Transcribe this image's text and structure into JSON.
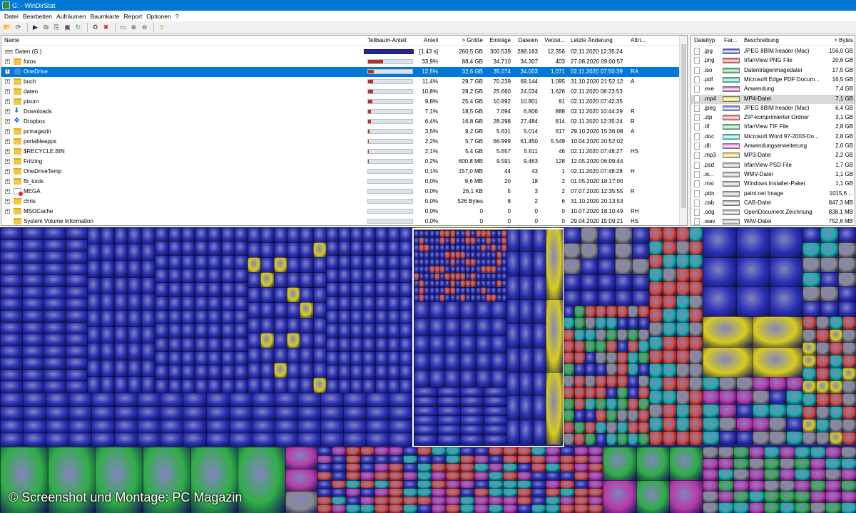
{
  "window": {
    "title": "G: - WinDirStat"
  },
  "menu": [
    "Datei",
    "Bearbeiten",
    "Aufräumen",
    "Baumkarte",
    "Report",
    "Optionen",
    "?"
  ],
  "toolbar": [
    "open-icon",
    "refresh-icon",
    "play-icon",
    "copy-icon",
    "copy-path-icon",
    "cmd-icon",
    "refresh-all-icon",
    "recycle-icon",
    "delete-icon",
    "folder-icon",
    "zoom-in-icon",
    "zoom-out-icon",
    "help-icon"
  ],
  "tree": {
    "columns": [
      "Name",
      "Teilbaum-Anteil",
      "Anteil",
      "> Größe",
      "Einträge",
      "Dateien",
      "Verzei...",
      "Letzte Änderung",
      "Attri..."
    ],
    "rows": [
      {
        "name": "Daten (G:)",
        "icon": "drive",
        "pct_text": "[1:43 s]",
        "fill": 1.0,
        "size": "260,5 GB",
        "entries": "300.539",
        "files": "288.183",
        "dirs": "12.356",
        "date": "02.11.2020  12:35:24",
        "attr": "",
        "top": true
      },
      {
        "name": "fotos",
        "icon": "folder",
        "pct_text": "33,9%",
        "fill": 0.339,
        "size": "88,4 GB",
        "entries": "34.710",
        "files": "34.307",
        "dirs": "403",
        "date": "27.08.2020  09:00:57",
        "attr": ""
      },
      {
        "name": "OneDrive",
        "icon": "cloud",
        "pct_text": "12,5%",
        "fill": 0.125,
        "size": "32,6 GB",
        "entries": "35.074",
        "files": "34.003",
        "dirs": "1.071",
        "date": "02.11.2020  07:50:39",
        "attr": "RA",
        "selected": true
      },
      {
        "name": "buch",
        "icon": "folder",
        "pct_text": "11,4%",
        "fill": 0.114,
        "size": "29,7 GB",
        "entries": "70.239",
        "files": "69.144",
        "dirs": "1.095",
        "date": "31.10.2020  21:52:12",
        "attr": "A"
      },
      {
        "name": "daten",
        "icon": "folder",
        "pct_text": "10,8%",
        "fill": 0.108,
        "size": "28,2 GB",
        "entries": "25.660",
        "files": "24.034",
        "dirs": "1.626",
        "date": "02.11.2020  08:23:53",
        "attr": ""
      },
      {
        "name": "pixum",
        "icon": "folder",
        "pct_text": "9,8%",
        "fill": 0.098,
        "size": "25,4 GB",
        "entries": "10.892",
        "files": "10.801",
        "dirs": "91",
        "date": "02.11.2020  07:42:35",
        "attr": ""
      },
      {
        "name": "Downloads",
        "icon": "dl",
        "pct_text": "7,1%",
        "fill": 0.071,
        "size": "18,5 GB",
        "entries": "7.694",
        "files": "6.806",
        "dirs": "888",
        "date": "02.11.2020  10:44:29",
        "attr": "R"
      },
      {
        "name": "Dropbox",
        "icon": "dbx",
        "pct_text": "6,4%",
        "fill": 0.064,
        "size": "16,8 GB",
        "entries": "28.298",
        "files": "27.484",
        "dirs": "814",
        "date": "02.11.2020  12:35:24",
        "attr": "R"
      },
      {
        "name": "pcmagazin",
        "icon": "folder",
        "pct_text": "3,5%",
        "fill": 0.035,
        "size": "9,2 GB",
        "entries": "5.631",
        "files": "5.014",
        "dirs": "617",
        "date": "29.10.2020  15:36:08",
        "attr": "A"
      },
      {
        "name": "portableapps",
        "icon": "folder",
        "pct_text": "2,2%",
        "fill": 0.022,
        "size": "5,7 GB",
        "entries": "66.999",
        "files": "61.450",
        "dirs": "5.549",
        "date": "10.04.2020  20:52:02",
        "attr": ""
      },
      {
        "name": "$RECYCLE.BIN",
        "icon": "folder",
        "pct_text": "2,1%",
        "fill": 0.021,
        "size": "5,4 GB",
        "entries": "5.657",
        "files": "5.611",
        "dirs": "46",
        "date": "02.11.2020  07:48:27",
        "attr": "HS"
      },
      {
        "name": "Fritzing",
        "icon": "folder",
        "pct_text": "0,2%",
        "fill": 0.002,
        "size": "600,8 MB",
        "entries": "9.591",
        "files": "9.463",
        "dirs": "128",
        "date": "12.05.2020  06:09:44",
        "attr": ""
      },
      {
        "name": "OneDriveTemp",
        "icon": "folder",
        "pct_text": "0,1%",
        "fill": 0.001,
        "size": "157,0 MB",
        "entries": "44",
        "files": "43",
        "dirs": "1",
        "date": "02.11.2020  07:48:28",
        "attr": "H"
      },
      {
        "name": "fb_tools",
        "icon": "folder",
        "pct_text": "0,0%",
        "fill": 0,
        "size": "9,6 MB",
        "entries": "20",
        "files": "18",
        "dirs": "2",
        "date": "01.05.2020  18:17:00",
        "attr": ""
      },
      {
        "name": "MEGA",
        "icon": "mega",
        "pct_text": "0,0%",
        "fill": 0,
        "size": "26,1 KB",
        "entries": "5",
        "files": "3",
        "dirs": "2",
        "date": "07.07.2020  12:35:55",
        "attr": "R"
      },
      {
        "name": "chris",
        "icon": "folder",
        "pct_text": "0,0%",
        "fill": 0,
        "size": "526 Bytes",
        "entries": "8",
        "files": "2",
        "dirs": "6",
        "date": "31.10.2020  20:13:53",
        "attr": ""
      },
      {
        "name": "MSOCache",
        "icon": "folder",
        "pct_text": "0,0%",
        "fill": 0,
        "size": "0",
        "entries": "0",
        "files": "0",
        "dirs": "0",
        "date": "10.07.2020  18:10:49",
        "attr": "RH"
      },
      {
        "name": "System Volume Information",
        "icon": "folder",
        "pct_text": "0,0%",
        "fill": 0,
        "size": "0",
        "entries": "0",
        "files": "0",
        "dirs": "0",
        "date": "29.04.2020  15:09:21",
        "attr": "HS"
      }
    ]
  },
  "extensions": {
    "columns": [
      "Dateityp",
      "Far...",
      "Beschreibung",
      "> Bytes"
    ],
    "rows": [
      {
        "ext": ".jpg",
        "color": "#3a3fc4",
        "desc": "JPEG 8BIM header (Mac)",
        "bytes": "156,0 GB"
      },
      {
        "ext": ".png",
        "color": "#d93a2d",
        "desc": "IrfanView PNG File",
        "bytes": "20,6 GB"
      },
      {
        "ext": ".iso",
        "color": "#22b04a",
        "desc": "Datenträgerimagedatei",
        "bytes": "17,5 GB"
      },
      {
        "ext": ".pdf",
        "color": "#0fb8b0",
        "desc": "Microsoft Edge PDF Docum...",
        "bytes": "16,5 GB"
      },
      {
        "ext": ".exe",
        "color": "#c03fb8",
        "desc": "Anwendung",
        "bytes": "7,4 GB"
      },
      {
        "ext": ".mp4",
        "color": "#e3d01c",
        "desc": "MP4-Datei",
        "bytes": "7,1 GB",
        "selected": true
      },
      {
        "ext": ".jpeg",
        "color": "#5a64d8",
        "desc": "JPEG 8BIM header (Mac)",
        "bytes": "6,4 GB"
      },
      {
        "ext": ".zip",
        "color": "#e8504a",
        "desc": "ZIP-komprimierter Ordner",
        "bytes": "3,1 GB"
      },
      {
        "ext": ".tif",
        "color": "#37c268",
        "desc": "IrfanView TIF File",
        "bytes": "2,8 GB"
      },
      {
        "ext": ".doc",
        "color": "#20c8c0",
        "desc": "Microsoft Word 97-2003-Do...",
        "bytes": "2,8 GB"
      },
      {
        "ext": ".dll",
        "color": "#d957cf",
        "desc": "Anwendungserweiterung",
        "bytes": "2,6 GB"
      },
      {
        "ext": ".mp3",
        "color": "#c8c43a",
        "desc": "MP3-Datei",
        "bytes": "2,2 GB"
      },
      {
        "ext": ".psd",
        "color": "#9a9a9a",
        "desc": "IrfanView PSD File",
        "bytes": "1,7 GB"
      },
      {
        "ext": ".w...",
        "color": "#9a9a9a",
        "desc": "WMV-Datei",
        "bytes": "1,1 GB"
      },
      {
        "ext": ".msi",
        "color": "#9a9a9a",
        "desc": "Windows Installer-Paket",
        "bytes": "1,1 GB"
      },
      {
        "ext": ".pdn",
        "color": "#9a9a9a",
        "desc": "paint.net Image",
        "bytes": "1015,6 ..."
      },
      {
        "ext": ".cab",
        "color": "#9a9a9a",
        "desc": "CAB-Datei",
        "bytes": "847,3 MB"
      },
      {
        "ext": ".odg",
        "color": "#9a9a9a",
        "desc": "OpenDocument Zeichnung",
        "bytes": "838,1 MB"
      },
      {
        "ext": ".wav",
        "color": "#9a9a9a",
        "desc": "WAV-Datei",
        "bytes": "752,6 MB"
      }
    ]
  },
  "treemap": {
    "colors": {
      "blue": "#2a30b4",
      "red": "#d94a3a",
      "green": "#2fae45",
      "cyan": "#18b2a8",
      "magenta": "#b83aa8",
      "yellow": "#d8cc1e",
      "gray": "#8a8a8a",
      "highlight": "#ffffff"
    }
  },
  "caption": "© Screenshot und Montage: PC Magazin"
}
